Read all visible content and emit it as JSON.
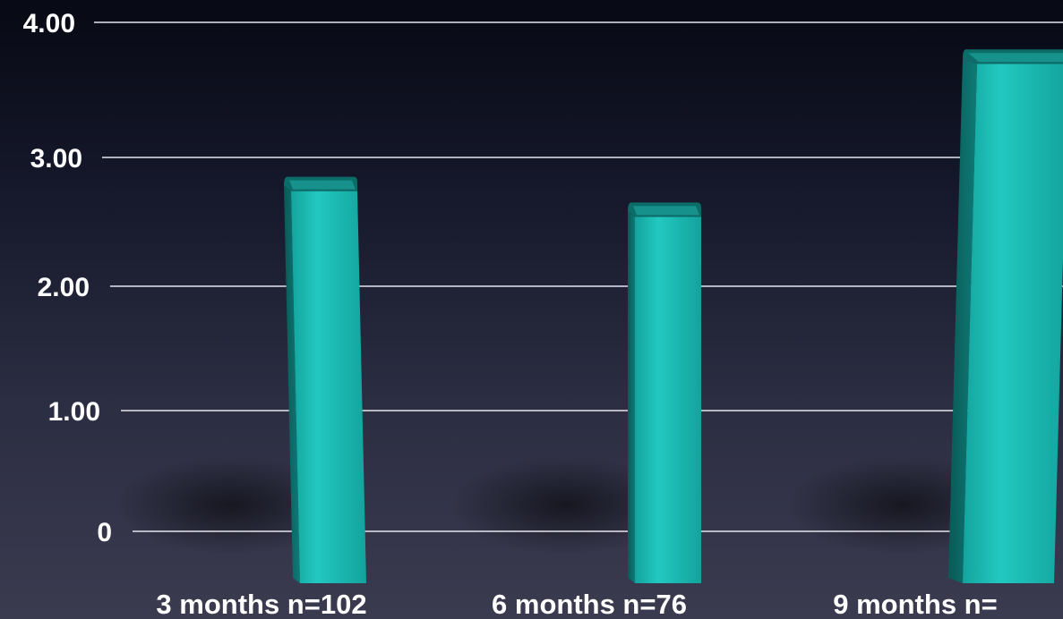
{
  "chart_data": {
    "type": "bar",
    "title": "",
    "xlabel": "",
    "ylabel": "",
    "categories": [
      "3 months n=102",
      "6 months n=76",
      "9 months n="
    ],
    "values": [
      2.85,
      2.65,
      3.8
    ],
    "y_ticks": [
      "0",
      "1.00",
      "2.00",
      "3.00",
      "4.00"
    ],
    "ylim": [
      0,
      4
    ],
    "grid": true,
    "colors": {
      "bar": "#1fc3bb",
      "bar_dark": "#0c6c68",
      "bar_top": "#2fd6cd"
    }
  }
}
